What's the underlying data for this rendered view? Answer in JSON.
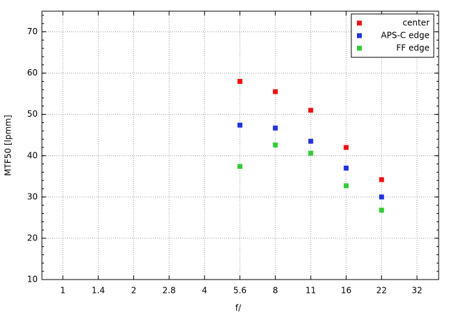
{
  "chart_data": {
    "type": "scatter",
    "x_label": "f/",
    "y_label": "MTF50 [lpmm]",
    "categories": [
      "1",
      "1.4",
      "2",
      "2.8",
      "4",
      "5.6",
      "8",
      "11",
      "16",
      "22",
      "32"
    ],
    "series": [
      {
        "name": "center",
        "color": "#ee1111",
        "values": [
          null,
          null,
          null,
          null,
          null,
          58,
          55.5,
          51,
          42,
          34.2,
          null
        ]
      },
      {
        "name": "APS-C edge",
        "color": "#2233dd",
        "values": [
          null,
          null,
          null,
          null,
          null,
          47.4,
          46.7,
          43.5,
          37,
          30,
          null
        ]
      },
      {
        "name": "FF edge",
        "color": "#33cc33",
        "values": [
          null,
          null,
          null,
          null,
          null,
          37.4,
          42.6,
          40.6,
          32.7,
          26.8,
          null
        ]
      }
    ],
    "ylim": [
      10,
      75
    ],
    "yticks": [
      10,
      20,
      30,
      40,
      50,
      60,
      70
    ],
    "grid": true,
    "legend": "upper right"
  }
}
